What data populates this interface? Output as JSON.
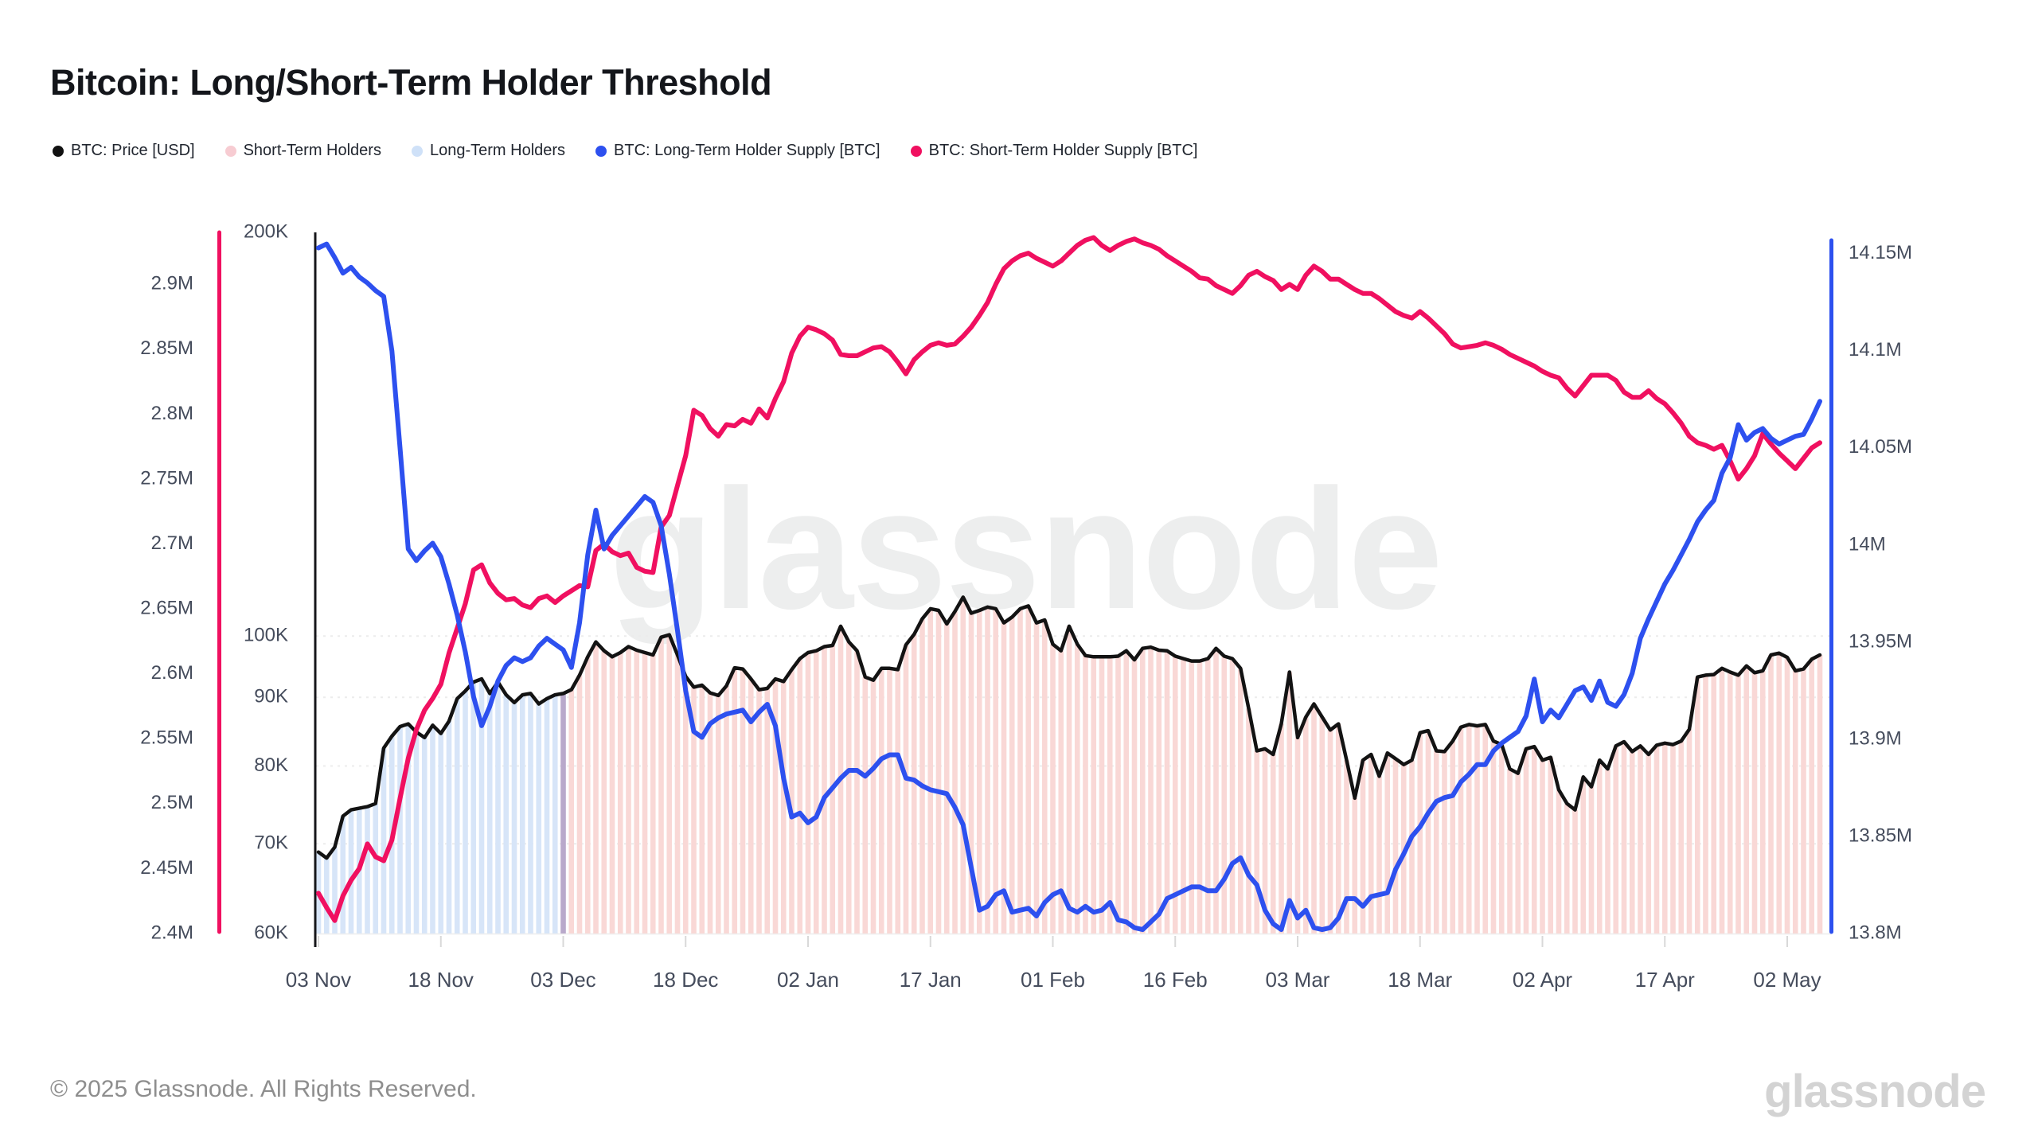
{
  "title": "Bitcoin: Long/Short-Term Holder Threshold",
  "legend": [
    {
      "label": "BTC: Price [USD]",
      "color": "#111111"
    },
    {
      "label": "Short-Term Holders",
      "color": "#f7ccd2"
    },
    {
      "label": "Long-Term Holders",
      "color": "#cfe1f8"
    },
    {
      "label": "BTC: Long-Term Holder Supply [BTC]",
      "color": "#2d50ef"
    },
    {
      "label": "BTC: Short-Term Holder Supply [BTC]",
      "color": "#f01060"
    }
  ],
  "watermark": "glassnode",
  "footer": {
    "copyright": "© 2025 Glassnode. All Rights Reserved.",
    "logo_text": "glassnode"
  },
  "chart_data": {
    "type": "line",
    "title": "Bitcoin: Long/Short-Term Holder Threshold",
    "x_unit": "days since 03 Nov 2024",
    "grid": "horizontal-dotted-on-price-ticks",
    "legend_position": "top-left",
    "x_ticks": [
      {
        "day": 0,
        "label": "03 Nov"
      },
      {
        "day": 15,
        "label": "18 Nov"
      },
      {
        "day": 30,
        "label": "03 Dec"
      },
      {
        "day": 45,
        "label": "18 Dec"
      },
      {
        "day": 60,
        "label": "02 Jan"
      },
      {
        "day": 75,
        "label": "17 Jan"
      },
      {
        "day": 90,
        "label": "01 Feb"
      },
      {
        "day": 105,
        "label": "16 Feb"
      },
      {
        "day": 120,
        "label": "03 Mar"
      },
      {
        "day": 135,
        "label": "18 Mar"
      },
      {
        "day": 150,
        "label": "02 Apr"
      },
      {
        "day": 165,
        "label": "17 Apr"
      },
      {
        "day": 180,
        "label": "02 May"
      }
    ],
    "axes": {
      "price": {
        "side": "inner-left",
        "scale": "log",
        "min": 60000,
        "max": 200000,
        "line_color": "#16161a",
        "ticks": [
          {
            "value": 200000,
            "label": "200K"
          },
          {
            "value": 100000,
            "label": "100K"
          },
          {
            "value": 90000,
            "label": "90K"
          },
          {
            "value": 80000,
            "label": "80K"
          },
          {
            "value": 70000,
            "label": "70K"
          },
          {
            "value": 60000,
            "label": "60K"
          }
        ]
      },
      "sth": {
        "side": "outer-left",
        "scale": "linear",
        "min": 2400000,
        "max": 2940000,
        "line_color": "#f01060",
        "ticks": [
          {
            "value": 2900000,
            "label": "2.9M"
          },
          {
            "value": 2850000,
            "label": "2.85M"
          },
          {
            "value": 2800000,
            "label": "2.8M"
          },
          {
            "value": 2750000,
            "label": "2.75M"
          },
          {
            "value": 2700000,
            "label": "2.7M"
          },
          {
            "value": 2650000,
            "label": "2.65M"
          },
          {
            "value": 2600000,
            "label": "2.6M"
          },
          {
            "value": 2550000,
            "label": "2.55M"
          },
          {
            "value": 2500000,
            "label": "2.5M"
          },
          {
            "value": 2450000,
            "label": "2.45M"
          },
          {
            "value": 2400000,
            "label": "2.4M"
          }
        ]
      },
      "lth": {
        "side": "right",
        "scale": "linear",
        "min": 13800000,
        "max": 14161000,
        "line_color": "#2d50ef",
        "ticks": [
          {
            "value": 14150000,
            "label": "14.15M"
          },
          {
            "value": 14100000,
            "label": "14.1M"
          },
          {
            "value": 14050000,
            "label": "14.05M"
          },
          {
            "value": 14000000,
            "label": "14M"
          },
          {
            "value": 13950000,
            "label": "13.95M"
          },
          {
            "value": 13900000,
            "label": "13.9M"
          },
          {
            "value": 13850000,
            "label": "13.85M"
          },
          {
            "value": 13800000,
            "label": "13.8M"
          }
        ]
      }
    },
    "bands": [
      {
        "name": "Long-Term Holders",
        "color": "#d7e5f8",
        "from_day": 0,
        "to_day": 29
      },
      {
        "name": "transition",
        "color": "#b9a9cb",
        "from_day": 30,
        "to_day": 30
      },
      {
        "name": "Short-Term Holders",
        "color": "#f9d8d6",
        "from_day": 31,
        "to_day": 184
      }
    ],
    "series": [
      {
        "name": "BTC: Price [USD]",
        "axis": "price",
        "color": "#131313",
        "width": 4.5,
        "values": [
          69000,
          68300,
          69600,
          73400,
          74200,
          74400,
          74600,
          75000,
          82500,
          84200,
          85600,
          86000,
          84800,
          84000,
          85800,
          84600,
          86400,
          89800,
          91000,
          92400,
          92900,
          90600,
          92400,
          90400,
          89200,
          90400,
          90600,
          89000,
          89800,
          90400,
          90600,
          91200,
          93500,
          96500,
          99000,
          97500,
          96500,
          97200,
          98200,
          97600,
          97200,
          96800,
          99800,
          100200,
          96800,
          93300,
          91600,
          91900,
          90700,
          90300,
          91800,
          94700,
          94500,
          92900,
          91200,
          91400,
          92900,
          92500,
          94400,
          96200,
          97200,
          97500,
          98200,
          98400,
          101700,
          99000,
          97500,
          93200,
          92700,
          94600,
          94600,
          94400,
          98500,
          100300,
          103000,
          104800,
          104500,
          102100,
          104300,
          106900,
          104000,
          104500,
          105100,
          104800,
          102300,
          103300,
          104800,
          105300,
          102300,
          102800,
          98600,
          97500,
          101700,
          98600,
          96700,
          96500,
          96500,
          96500,
          96600,
          97500,
          96000,
          97900,
          98100,
          97600,
          97500,
          96600,
          96200,
          95800,
          95800,
          96200,
          97900,
          96600,
          96200,
          94600,
          88300,
          82100,
          82400,
          81600,
          86000,
          94000,
          84000,
          87000,
          89000,
          87000,
          85100,
          86000,
          80800,
          75700,
          80800,
          81600,
          78600,
          81800,
          81000,
          80200,
          80800,
          84700,
          85000,
          82100,
          82000,
          83500,
          85500,
          85900,
          85700,
          85900,
          83500,
          83000,
          79600,
          79000,
          82400,
          82700,
          80800,
          81200,
          76800,
          75000,
          74200,
          78500,
          77200,
          80800,
          79600,
          82800,
          83400,
          82000,
          82800,
          81600,
          82900,
          83200,
          83000,
          83500,
          85200,
          93200,
          93500,
          93600,
          94600,
          94000,
          93500,
          95000,
          93900,
          94200,
          96800,
          97100,
          96400,
          94200,
          94500,
          96100,
          96800
        ]
      },
      {
        "name": "BTC: Long-Term Holder Supply [BTC]",
        "axis": "lth",
        "color": "#2d50ef",
        "width": 6,
        "values": [
          14153000,
          14155000,
          14148000,
          14140000,
          14143000,
          14138000,
          14135000,
          14131000,
          14128000,
          14100000,
          14050000,
          13998000,
          13992000,
          13997000,
          14001000,
          13994000,
          13980000,
          13964000,
          13945000,
          13922000,
          13907000,
          13917000,
          13930000,
          13938000,
          13942000,
          13940000,
          13942000,
          13948000,
          13952000,
          13949000,
          13946000,
          13937000,
          13960000,
          13995000,
          14018000,
          13998000,
          14005000,
          14010000,
          14015000,
          14020000,
          14025000,
          14022000,
          14010000,
          13985000,
          13956000,
          13925000,
          13904000,
          13901000,
          13908000,
          13911000,
          13913000,
          13914000,
          13915000,
          13909000,
          13914000,
          13918000,
          13907000,
          13880000,
          13860000,
          13862000,
          13857000,
          13860000,
          13870000,
          13875000,
          13880000,
          13884000,
          13884000,
          13881000,
          13885000,
          13890000,
          13892000,
          13892000,
          13880000,
          13879000,
          13876000,
          13874000,
          13873000,
          13872000,
          13865000,
          13856000,
          13834000,
          13812000,
          13814000,
          13820000,
          13822000,
          13811000,
          13812000,
          13813000,
          13809000,
          13816000,
          13820000,
          13822000,
          13813000,
          13811000,
          13814000,
          13811000,
          13812000,
          13816000,
          13807000,
          13806000,
          13803000,
          13802000,
          13806000,
          13810000,
          13818000,
          13820000,
          13822000,
          13824000,
          13824000,
          13822000,
          13822000,
          13828000,
          13836000,
          13839000,
          13830000,
          13825000,
          13812000,
          13805000,
          13802000,
          13817000,
          13808000,
          13812000,
          13803000,
          13802000,
          13803000,
          13808000,
          13818000,
          13818000,
          13814000,
          13819000,
          13820000,
          13821000,
          13833000,
          13841000,
          13850000,
          13855000,
          13862000,
          13868000,
          13870000,
          13871000,
          13878000,
          13882000,
          13887000,
          13887000,
          13894000,
          13898000,
          13901000,
          13904000,
          13912000,
          13931000,
          13909000,
          13915000,
          13911000,
          13918000,
          13925000,
          13927000,
          13920000,
          13930000,
          13919000,
          13917000,
          13923000,
          13934000,
          13952000,
          13962000,
          13971000,
          13980000,
          13987000,
          13995000,
          14003000,
          14012000,
          14018000,
          14023000,
          14037000,
          14045000,
          14062000,
          14054000,
          14058000,
          14060000,
          14055000,
          14052000,
          14054000,
          14056000,
          14057000,
          14065000,
          14074000
        ]
      },
      {
        "name": "BTC: Short-Term Holder Supply [BTC]",
        "axis": "sth",
        "color": "#f01060",
        "width": 6,
        "values": [
          2431000,
          2420000,
          2410000,
          2429000,
          2441000,
          2450000,
          2469000,
          2459000,
          2456000,
          2472000,
          2504000,
          2535000,
          2557000,
          2572000,
          2581000,
          2592000,
          2616000,
          2635000,
          2654000,
          2680000,
          2684000,
          2670000,
          2662000,
          2657000,
          2658000,
          2653000,
          2651000,
          2658000,
          2660000,
          2655000,
          2660000,
          2664000,
          2668000,
          2667000,
          2695000,
          2700000,
          2694000,
          2691000,
          2693000,
          2682000,
          2679000,
          2678000,
          2713000,
          2722000,
          2745000,
          2768000,
          2803000,
          2799000,
          2789000,
          2783000,
          2792000,
          2791000,
          2796000,
          2793000,
          2804000,
          2797000,
          2812000,
          2825000,
          2847000,
          2860000,
          2867000,
          2865000,
          2862000,
          2857000,
          2846000,
          2845000,
          2845000,
          2848000,
          2851000,
          2852000,
          2848000,
          2840000,
          2831000,
          2842000,
          2848000,
          2853000,
          2855000,
          2853000,
          2854000,
          2860000,
          2867000,
          2876000,
          2886000,
          2900000,
          2912000,
          2918000,
          2922000,
          2924000,
          2920000,
          2917000,
          2914000,
          2918000,
          2924000,
          2930000,
          2934000,
          2936000,
          2930000,
          2926000,
          2930000,
          2933000,
          2935000,
          2932000,
          2930000,
          2927000,
          2922000,
          2918000,
          2914000,
          2910000,
          2905000,
          2904000,
          2899000,
          2896000,
          2893000,
          2899000,
          2907000,
          2910000,
          2906000,
          2903000,
          2896000,
          2900000,
          2896000,
          2907000,
          2914000,
          2910000,
          2904000,
          2904000,
          2900000,
          2896000,
          2893000,
          2893000,
          2889000,
          2884000,
          2879000,
          2876000,
          2874000,
          2879000,
          2874000,
          2868000,
          2862000,
          2854000,
          2851000,
          2852000,
          2853000,
          2855000,
          2853000,
          2850000,
          2846000,
          2843000,
          2840000,
          2837000,
          2833000,
          2830000,
          2828000,
          2820000,
          2814000,
          2822000,
          2830000,
          2830000,
          2830000,
          2826000,
          2817000,
          2813000,
          2813000,
          2818000,
          2812000,
          2808000,
          2801000,
          2793000,
          2783000,
          2778000,
          2776000,
          2773000,
          2776000,
          2764000,
          2750000,
          2758000,
          2768000,
          2785000,
          2777000,
          2770000,
          2764000,
          2758000,
          2766000,
          2774000,
          2778000
        ]
      }
    ]
  }
}
